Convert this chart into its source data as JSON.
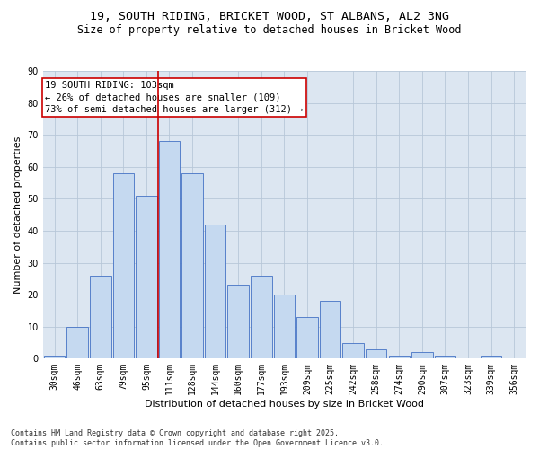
{
  "title_line1": "19, SOUTH RIDING, BRICKET WOOD, ST ALBANS, AL2 3NG",
  "title_line2": "Size of property relative to detached houses in Bricket Wood",
  "xlabel": "Distribution of detached houses by size in Bricket Wood",
  "ylabel": "Number of detached properties",
  "footnote": "Contains HM Land Registry data © Crown copyright and database right 2025.\nContains public sector information licensed under the Open Government Licence v3.0.",
  "annotation_title": "19 SOUTH RIDING: 103sqm",
  "annotation_line2": "← 26% of detached houses are smaller (109)",
  "annotation_line3": "73% of semi-detached houses are larger (312) →",
  "bar_labels": [
    "30sqm",
    "46sqm",
    "63sqm",
    "79sqm",
    "95sqm",
    "111sqm",
    "128sqm",
    "144sqm",
    "160sqm",
    "177sqm",
    "193sqm",
    "209sqm",
    "225sqm",
    "242sqm",
    "258sqm",
    "274sqm",
    "290sqm",
    "307sqm",
    "323sqm",
    "339sqm",
    "356sqm"
  ],
  "bar_values": [
    1,
    10,
    26,
    58,
    51,
    68,
    58,
    42,
    23,
    26,
    20,
    13,
    18,
    5,
    3,
    1,
    2,
    1,
    0,
    1,
    0
  ],
  "bar_color": "#c5d9f0",
  "bar_edge_color": "#4472c4",
  "grid_color": "#b8c7d8",
  "bg_color": "#dce6f1",
  "vline_x_index": 4.5,
  "vline_color": "#cc0000",
  "ylim": [
    0,
    90
  ],
  "yticks": [
    0,
    10,
    20,
    30,
    40,
    50,
    60,
    70,
    80,
    90
  ],
  "annotation_box_color": "#ffffff",
  "annotation_box_edge": "#cc0000",
  "title_fontsize": 9.5,
  "subtitle_fontsize": 8.5,
  "tick_fontsize": 7,
  "ylabel_fontsize": 8,
  "xlabel_fontsize": 8,
  "annotation_fontsize": 7.5,
  "footnote_fontsize": 6
}
